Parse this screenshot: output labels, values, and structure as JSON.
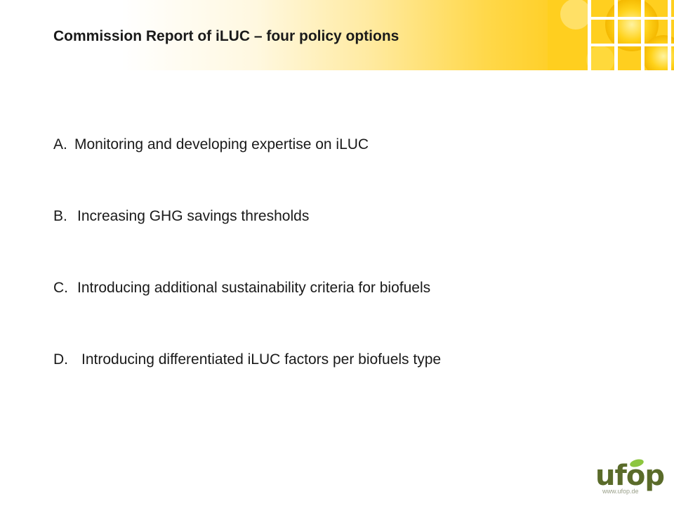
{
  "slide": {
    "title": "Commission Report of iLUC – four policy options",
    "options": [
      {
        "letter": "A.",
        "text": "Monitoring and developing expertise on iLUC"
      },
      {
        "letter": "B.",
        "text": "Increasing GHG savings thresholds"
      },
      {
        "letter": "C.",
        "text": "Introducing additional sustainability criteria for biofuels"
      },
      {
        "letter": "D.",
        "text": "Introducing differentiated iLUC factors per biofuels type"
      }
    ]
  },
  "logo": {
    "wordmark": "ufop",
    "url": "www.ufop.de",
    "icon": "leaf-icon"
  },
  "colors": {
    "header_yellow": "#ffcc1a",
    "text": "#1a1a1a",
    "logo_green": "#5a6b2a",
    "leaf_green": "#8dc63f"
  }
}
